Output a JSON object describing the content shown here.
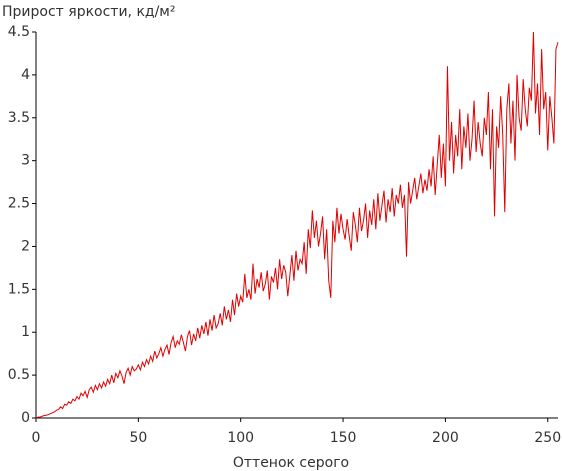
{
  "chart_data": {
    "type": "line",
    "title": "Прирост яркости, кд/м²",
    "x_label": "Оттенок серого",
    "xlim": [
      0,
      255
    ],
    "ylim": [
      0,
      4.5
    ],
    "xticks": [
      0,
      50,
      100,
      150,
      200,
      250
    ],
    "yticks": [
      0,
      0.5,
      1,
      1.5,
      2,
      2.5,
      3,
      3.5,
      4,
      4.5
    ],
    "color": "#e00000",
    "x": [
      0,
      1,
      2,
      3,
      4,
      5,
      6,
      7,
      8,
      9,
      10,
      11,
      12,
      13,
      14,
      15,
      16,
      17,
      18,
      19,
      20,
      21,
      22,
      23,
      24,
      25,
      26,
      27,
      28,
      29,
      30,
      31,
      32,
      33,
      34,
      35,
      36,
      37,
      38,
      39,
      40,
      41,
      42,
      43,
      44,
      45,
      46,
      47,
      48,
      49,
      50,
      51,
      52,
      53,
      54,
      55,
      56,
      57,
      58,
      59,
      60,
      61,
      62,
      63,
      64,
      65,
      66,
      67,
      68,
      69,
      70,
      71,
      72,
      73,
      74,
      75,
      76,
      77,
      78,
      79,
      80,
      81,
      82,
      83,
      84,
      85,
      86,
      87,
      88,
      89,
      90,
      91,
      92,
      93,
      94,
      95,
      96,
      97,
      98,
      99,
      100,
      101,
      102,
      103,
      104,
      105,
      106,
      107,
      108,
      109,
      110,
      111,
      112,
      113,
      114,
      115,
      116,
      117,
      118,
      119,
      120,
      121,
      122,
      123,
      124,
      125,
      126,
      127,
      128,
      129,
      130,
      131,
      132,
      133,
      134,
      135,
      136,
      137,
      138,
      139,
      140,
      141,
      142,
      143,
      144,
      145,
      146,
      147,
      148,
      149,
      150,
      151,
      152,
      153,
      154,
      155,
      156,
      157,
      158,
      159,
      160,
      161,
      162,
      163,
      164,
      165,
      166,
      167,
      168,
      169,
      170,
      171,
      172,
      173,
      174,
      175,
      176,
      177,
      178,
      179,
      180,
      181,
      182,
      183,
      184,
      185,
      186,
      187,
      188,
      189,
      190,
      191,
      192,
      193,
      194,
      195,
      196,
      197,
      198,
      199,
      200,
      201,
      202,
      203,
      204,
      205,
      206,
      207,
      208,
      209,
      210,
      211,
      212,
      213,
      214,
      215,
      216,
      217,
      218,
      219,
      220,
      221,
      222,
      223,
      224,
      225,
      226,
      227,
      228,
      229,
      230,
      231,
      232,
      233,
      234,
      235,
      236,
      237,
      238,
      239,
      240,
      241,
      242,
      243,
      244,
      245,
      246,
      247,
      248,
      249,
      250,
      251,
      252,
      253,
      254,
      255
    ],
    "values": [
      0,
      0.01,
      0.01,
      0.02,
      0.03,
      0.03,
      0.04,
      0.05,
      0.06,
      0.07,
      0.09,
      0.1,
      0.13,
      0.11,
      0.16,
      0.15,
      0.19,
      0.17,
      0.22,
      0.2,
      0.25,
      0.22,
      0.29,
      0.26,
      0.31,
      0.24,
      0.33,
      0.36,
      0.3,
      0.38,
      0.33,
      0.4,
      0.35,
      0.42,
      0.37,
      0.45,
      0.4,
      0.5,
      0.41,
      0.52,
      0.47,
      0.55,
      0.49,
      0.4,
      0.53,
      0.58,
      0.5,
      0.6,
      0.55,
      0.57,
      0.62,
      0.56,
      0.65,
      0.6,
      0.68,
      0.63,
      0.72,
      0.66,
      0.78,
      0.7,
      0.75,
      0.82,
      0.72,
      0.8,
      0.85,
      0.74,
      0.88,
      0.95,
      0.82,
      0.9,
      0.86,
      0.97,
      0.88,
      0.78,
      0.95,
      1.02,
      0.85,
      0.98,
      0.9,
      1.05,
      0.93,
      1.08,
      0.98,
      1.12,
      0.96,
      1.15,
      1.02,
      1.2,
      1.05,
      1.1,
      1.22,
      1.08,
      1.3,
      1.15,
      1.26,
      1.12,
      1.38,
      1.2,
      1.45,
      1.3,
      1.42,
      1.35,
      1.68,
      1.4,
      1.5,
      1.38,
      1.8,
      1.45,
      1.62,
      1.52,
      1.7,
      1.48,
      1.56,
      1.72,
      1.38,
      1.65,
      1.58,
      1.75,
      1.5,
      1.85,
      1.62,
      1.78,
      1.7,
      1.42,
      1.66,
      1.9,
      1.6,
      1.95,
      1.72,
      1.85,
      1.8,
      2.05,
      1.68,
      2.2,
      1.98,
      2.42,
      2.1,
      2.3,
      2.0,
      2.15,
      2.35,
      1.85,
      2.2,
      1.6,
      1.4,
      2.3,
      2.05,
      2.45,
      2.15,
      2.38,
      2.2,
      2.08,
      2.32,
      2.12,
      1.95,
      2.4,
      2.25,
      2.05,
      2.45,
      2.18,
      2.3,
      2.5,
      2.1,
      2.42,
      2.25,
      2.55,
      2.2,
      2.62,
      2.3,
      2.48,
      2.65,
      2.28,
      2.55,
      2.4,
      2.68,
      2.35,
      2.6,
      2.5,
      2.72,
      2.45,
      2.6,
      1.88,
      2.75,
      2.5,
      2.65,
      2.8,
      2.55,
      2.7,
      2.85,
      2.62,
      2.78,
      2.65,
      2.9,
      2.7,
      3.05,
      2.6,
      2.95,
      3.3,
      2.8,
      3.2,
      2.7,
      4.1,
      3.0,
      3.45,
      2.85,
      3.3,
      3.05,
      3.6,
      2.9,
      3.4,
      3.15,
      3.55,
      3.0,
      3.25,
      3.7,
      3.1,
      3.45,
      3.2,
      3.05,
      3.5,
      3.3,
      3.8,
      2.9,
      3.6,
      2.35,
      3.4,
      3.15,
      3.75,
      3.3,
      2.4,
      3.6,
      3.9,
      3.2,
      3.7,
      3.0,
      4.0,
      3.5,
      3.35,
      3.95,
      3.6,
      3.4,
      3.85,
      3.7,
      4.5,
      3.55,
      3.9,
      3.3,
      4.3,
      3.6,
      3.8,
      3.12,
      3.75,
      3.5,
      3.2,
      4.3,
      4.38
    ]
  }
}
